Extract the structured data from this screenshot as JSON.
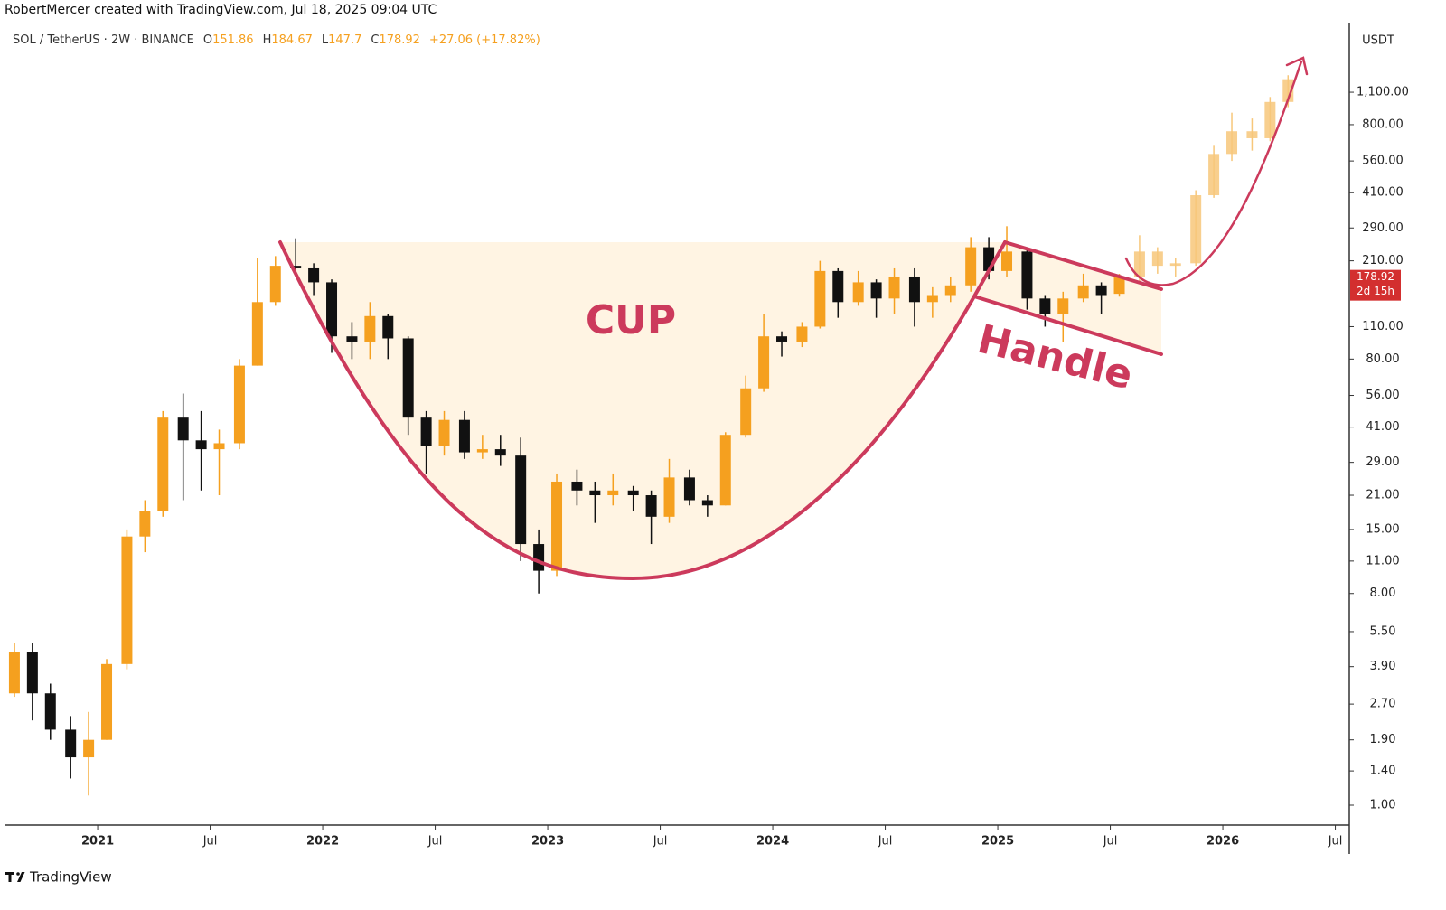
{
  "header": {
    "credit": "RobertMercer created with TradingView.com, Jul 18, 2025 09:04 UTC",
    "symbol": "SOL / TetherUS · 2W · BINANCE",
    "ohlc_labels": [
      "O",
      "H",
      "L",
      "C"
    ],
    "change": "+27.06 (+17.82%)"
  },
  "footer": {
    "logo": "TradingView"
  },
  "chart_data": {
    "type": "candlestick",
    "log_scale": true,
    "currency": "USDT",
    "countdown": "2d 15h",
    "up_color": "#f5a01f",
    "down_color": "#111111",
    "projection_color": "#f7c77a",
    "annotation_color": "#cc3a5c",
    "annotations": [
      "CUP",
      "Handle"
    ],
    "x": [
      2020.63,
      2020.71,
      2020.79,
      2020.88,
      2020.96,
      2021.04,
      2021.13,
      2021.21,
      2021.29,
      2021.38,
      2021.46,
      2021.54,
      2021.63,
      2021.71,
      2021.79,
      2021.88,
      2021.96,
      2022.04,
      2022.13,
      2022.21,
      2022.29,
      2022.38,
      2022.46,
      2022.54,
      2022.63,
      2022.71,
      2022.79,
      2022.88,
      2022.96,
      2023.04,
      2023.13,
      2023.21,
      2023.29,
      2023.38,
      2023.46,
      2023.54,
      2023.63,
      2023.71,
      2023.79,
      2023.88,
      2023.96,
      2024.04,
      2024.13,
      2024.21,
      2024.29,
      2024.38,
      2024.46,
      2024.54,
      2024.63,
      2024.71,
      2024.79,
      2024.88,
      2024.96,
      2025.04,
      2025.13,
      2025.21,
      2025.29,
      2025.38,
      2025.46,
      2025.54
    ],
    "open": [
      3.0,
      4.5,
      3.0,
      2.1,
      1.6,
      1.9,
      4.0,
      14,
      18,
      45,
      36,
      33,
      35,
      75,
      140,
      200,
      195,
      170,
      100,
      95,
      122,
      98,
      45,
      34,
      44,
      32,
      33,
      31,
      13,
      10,
      24,
      22,
      21,
      22,
      21,
      17,
      25,
      20,
      19,
      38,
      60,
      100,
      95,
      110,
      190,
      140,
      170,
      145,
      180,
      140,
      150,
      165,
      240,
      190,
      230,
      145,
      125,
      145,
      165,
      151.86
    ],
    "high": [
      4.9,
      4.9,
      3.3,
      2.4,
      2.5,
      4.2,
      15,
      20,
      48,
      57,
      48,
      40,
      80,
      215,
      220,
      262,
      205,
      175,
      115,
      140,
      125,
      100,
      48,
      48,
      48,
      38,
      38,
      37,
      15,
      26,
      27,
      24,
      26,
      23,
      22,
      30,
      27,
      21,
      39,
      68,
      125,
      105,
      115,
      210,
      195,
      190,
      175,
      195,
      195,
      162,
      180,
      265,
      265,
      295,
      235,
      150,
      155,
      185,
      170,
      184.67
    ],
    "low": [
      2.9,
      2.3,
      1.9,
      1.3,
      1.1,
      1.9,
      3.8,
      12,
      17,
      20,
      22,
      21,
      33,
      75,
      135,
      180,
      150,
      85,
      80,
      80,
      80,
      38,
      26,
      31,
      30,
      30,
      28,
      11,
      8,
      9.5,
      19,
      16,
      19,
      18,
      13,
      16,
      19,
      17,
      19,
      37,
      58,
      82,
      90,
      108,
      120,
      135,
      120,
      125,
      110,
      120,
      140,
      155,
      175,
      180,
      130,
      110,
      95,
      140,
      125,
      147.7
    ],
    "close": [
      4.5,
      3.0,
      2.1,
      1.6,
      1.9,
      4.0,
      14,
      18,
      45,
      36,
      33,
      35,
      75,
      140,
      200,
      195,
      170,
      100,
      95,
      122,
      98,
      45,
      34,
      44,
      32,
      33,
      31,
      13,
      10,
      24,
      22,
      21,
      22,
      21,
      17,
      25,
      20,
      19,
      38,
      60,
      100,
      95,
      110,
      190,
      140,
      170,
      145,
      180,
      140,
      150,
      165,
      240,
      190,
      230,
      145,
      125,
      145,
      165,
      150,
      178.92
    ],
    "projection": {
      "x": [
        2025.63,
        2025.71,
        2025.79,
        2025.88,
        2025.96,
        2026.04,
        2026.13,
        2026.21,
        2026.29
      ],
      "open": [
        179,
        230,
        200,
        205,
        400,
        600,
        750,
        700,
        1000
      ],
      "high": [
        270,
        240,
        215,
        420,
        650,
        900,
        850,
        1050,
        1300
      ],
      "low": [
        170,
        185,
        180,
        200,
        390,
        560,
        620,
        680,
        950
      ],
      "close": [
        230,
        200,
        205,
        400,
        600,
        750,
        700,
        1000,
        1250
      ]
    },
    "xlim": [
      2020.566,
      2026.558
    ],
    "xticks": [
      {
        "value": 2021,
        "label": "2021"
      },
      {
        "value": 2021.5,
        "label": "Jul"
      },
      {
        "value": 2022,
        "label": "2022"
      },
      {
        "value": 2022.5,
        "label": "Jul"
      },
      {
        "value": 2023,
        "label": "2023"
      },
      {
        "value": 2023.5,
        "label": "Jul"
      },
      {
        "value": 2024,
        "label": "2024"
      },
      {
        "value": 2024.5,
        "label": "Jul"
      },
      {
        "value": 2025,
        "label": "2025"
      },
      {
        "value": 2025.5,
        "label": "Jul"
      },
      {
        "value": 2026,
        "label": "2026"
      },
      {
        "value": 2026.5,
        "label": "Jul"
      }
    ],
    "ylim": [
      0.83,
      2180
    ],
    "yticks": [
      {
        "value": 1,
        "label": "1.00"
      },
      {
        "value": 1.4,
        "label": "1.40"
      },
      {
        "value": 1.9,
        "label": "1.90"
      },
      {
        "value": 2.7,
        "label": "2.70"
      },
      {
        "value": 3.9,
        "label": "3.90"
      },
      {
        "value": 5.5,
        "label": "5.50"
      },
      {
        "value": 8,
        "label": "8.00"
      },
      {
        "value": 11,
        "label": "11.00"
      },
      {
        "value": 15,
        "label": "15.00"
      },
      {
        "value": 21,
        "label": "21.00"
      },
      {
        "value": 29,
        "label": "29.00"
      },
      {
        "value": 41,
        "label": "41.00"
      },
      {
        "value": 56,
        "label": "56.00"
      },
      {
        "value": 80,
        "label": "80.00"
      },
      {
        "value": 110,
        "label": "110.00"
      },
      {
        "value": 210,
        "label": "210.00"
      },
      {
        "value": 290,
        "label": "290.00"
      },
      {
        "value": 410,
        "label": "410.00"
      },
      {
        "value": 560,
        "label": "560.00"
      },
      {
        "value": 800,
        "label": "800.00"
      },
      {
        "value": 1100,
        "label": "1,100.00"
      }
    ]
  }
}
